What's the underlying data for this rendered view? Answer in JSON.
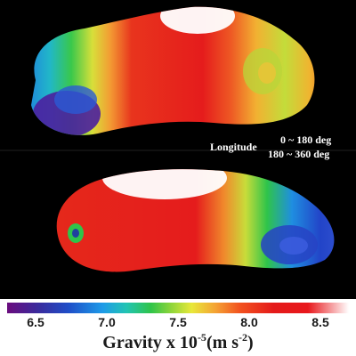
{
  "longitude_label": "Longitude",
  "longitude_ranges": [
    "0 ~ 180 deg",
    "180 ~ 360 deg"
  ],
  "colorbar": {
    "tick_labels": [
      "6.5",
      "7.0",
      "7.5",
      "8.0",
      "8.5"
    ],
    "tick_values": [
      6.5,
      7.0,
      7.5,
      8.0,
      8.5
    ],
    "range": [
      6.3,
      8.7
    ]
  },
  "axis_title": {
    "prefix": "Gravity x 10",
    "exponent": "-5",
    "unit_open": "(m s",
    "unit_exponent": "-2",
    "unit_close": ")"
  }
}
